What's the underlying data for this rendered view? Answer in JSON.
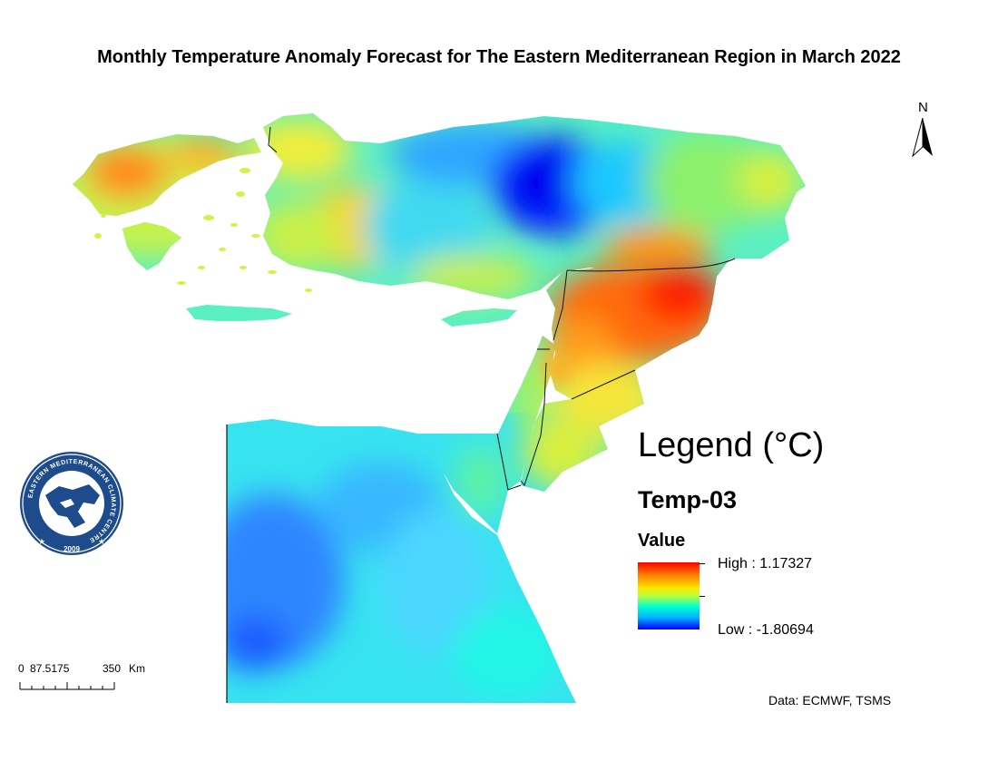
{
  "title": "Monthly Temperature Anomaly Forecast for The Eastern Mediterranean Region in March 2022",
  "north_arrow": {
    "label": "N"
  },
  "legend": {
    "heading": "Legend (°C)",
    "layer": "Temp-03",
    "field": "Value",
    "high_label": "High : 1.17327",
    "low_label": "Low : -1.80694",
    "high_value": 1.17327,
    "low_value": -1.80694,
    "ramp_colors": [
      "#ff0000",
      "#ff7a00",
      "#ffe600",
      "#b8ff3c",
      "#00ffd0",
      "#00b4ff",
      "#0000ff"
    ]
  },
  "scale_bar": {
    "labels": [
      "0",
      "87.5175",
      "350",
      "Km"
    ]
  },
  "logo": {
    "ring_text": "EASTERN MEDITERRANEAN CLIMATE CENTRE",
    "year": "2009"
  },
  "credit": "Data: ECMWF, TSMS"
}
